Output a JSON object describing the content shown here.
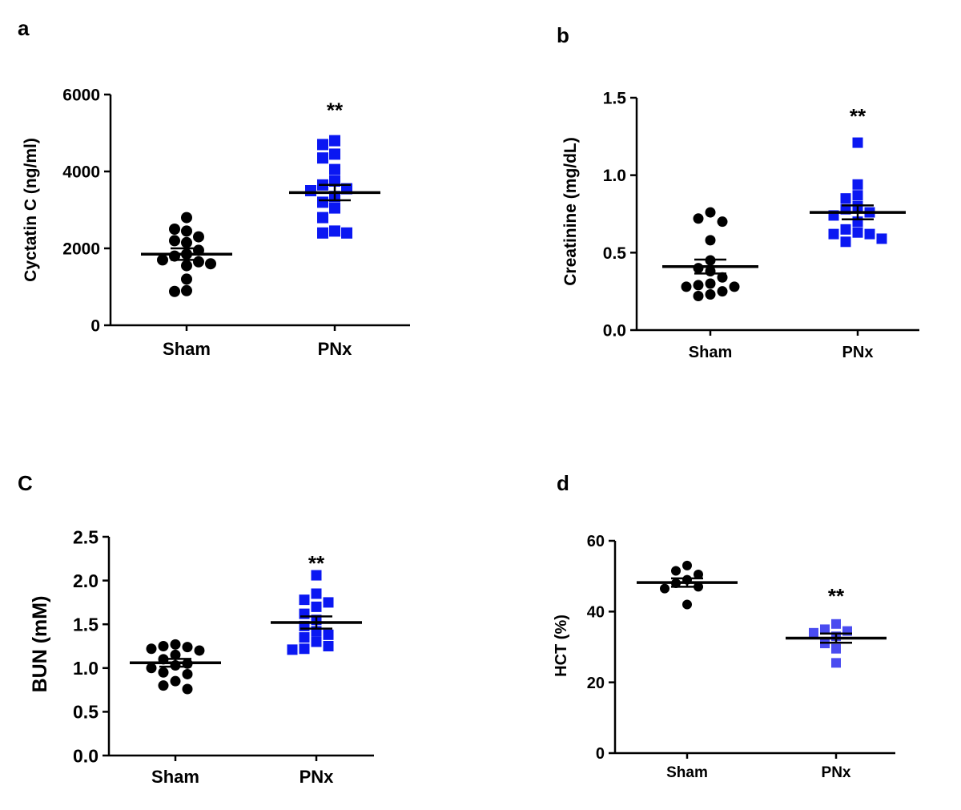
{
  "chart_data": [
    {
      "panel": "a",
      "type": "scatter",
      "categories": [
        "Sham",
        "PNx"
      ],
      "ylabel": "Cyctatin C (ng/ml)",
      "ylim": [
        0,
        6000
      ],
      "yticks": [
        0,
        2000,
        4000,
        6000
      ],
      "ytick_labels": [
        "0",
        "2000",
        "4000",
        "6000"
      ],
      "significance": {
        "category": "PNx",
        "label": "**"
      },
      "series": [
        {
          "name": "Sham",
          "marker": "circle",
          "color": "#000000",
          "values": [
            2800,
            2450,
            2500,
            2300,
            2200,
            2150,
            1950,
            1850,
            1800,
            1700,
            1650,
            1600,
            1550,
            1200,
            900,
            880
          ],
          "mean": 1850,
          "sem": 150
        },
        {
          "name": "PNx",
          "marker": "square",
          "color": "#0a17f2",
          "values": [
            4800,
            4700,
            4450,
            4350,
            4050,
            3750,
            3650,
            3550,
            3500,
            3350,
            3200,
            3050,
            2800,
            2450,
            2400,
            2400
          ],
          "mean": 3450,
          "sem": 200
        }
      ]
    },
    {
      "panel": "b",
      "type": "scatter",
      "categories": [
        "Sham",
        "PNx"
      ],
      "ylabel": "Creatinine (mg/dL)",
      "ylim": [
        0,
        1.5
      ],
      "yticks": [
        0,
        0.5,
        1.0,
        1.5
      ],
      "ytick_labels": [
        "0.0",
        "0.5",
        "1.0",
        "1.5"
      ],
      "significance": {
        "category": "PNx",
        "label": "**"
      },
      "series": [
        {
          "name": "Sham",
          "marker": "circle",
          "color": "#000000",
          "values": [
            0.76,
            0.72,
            0.7,
            0.58,
            0.45,
            0.4,
            0.38,
            0.34,
            0.3,
            0.29,
            0.28,
            0.28,
            0.25,
            0.23,
            0.22
          ],
          "mean": 0.41,
          "sem": 0.045
        },
        {
          "name": "PNx",
          "marker": "square",
          "color": "#0a17f2",
          "values": [
            1.21,
            0.94,
            0.87,
            0.85,
            0.8,
            0.78,
            0.76,
            0.74,
            0.7,
            0.65,
            0.63,
            0.62,
            0.62,
            0.59,
            0.57
          ],
          "mean": 0.76,
          "sem": 0.045
        }
      ]
    },
    {
      "panel": "C",
      "type": "scatter",
      "categories": [
        "Sham",
        "PNx"
      ],
      "ylabel": "BUN (mM)",
      "ylim": [
        0,
        2.5
      ],
      "yticks": [
        0,
        0.5,
        1.0,
        1.5,
        2.0,
        2.5
      ],
      "ytick_labels": [
        "0.0",
        "0.5",
        "1.0",
        "1.5",
        "2.0",
        "2.5"
      ],
      "significance": {
        "category": "PNx",
        "label": "**"
      },
      "series": [
        {
          "name": "Sham",
          "marker": "circle",
          "color": "#000000",
          "values": [
            1.27,
            1.25,
            1.24,
            1.22,
            1.2,
            1.15,
            1.1,
            1.05,
            1.03,
            1.0,
            0.95,
            0.93,
            0.85,
            0.8,
            0.76
          ],
          "mean": 1.06,
          "sem": 0.045
        },
        {
          "name": "PNx",
          "marker": "square",
          "color": "#0a17f2",
          "values": [
            2.06,
            1.85,
            1.78,
            1.75,
            1.7,
            1.62,
            1.55,
            1.48,
            1.42,
            1.38,
            1.35,
            1.3,
            1.25,
            1.22,
            1.21
          ],
          "mean": 1.52,
          "sem": 0.07
        }
      ]
    },
    {
      "panel": "d",
      "type": "scatter",
      "categories": [
        "Sham",
        "PNx"
      ],
      "ylabel": "HCT (%)",
      "ylim": [
        0,
        60
      ],
      "yticks": [
        0,
        20,
        40,
        60
      ],
      "ytick_labels": [
        "0",
        "20",
        "40",
        "60"
      ],
      "significance": {
        "category": "PNx",
        "label": "**"
      },
      "series": [
        {
          "name": "Sham",
          "marker": "circle",
          "color": "#000000",
          "values": [
            53,
            51.5,
            50.5,
            49,
            48,
            47,
            46.5,
            42
          ],
          "mean": 48.2,
          "sem": 1.2
        },
        {
          "name": "PNx",
          "marker": "square",
          "color": "#4a4cf0",
          "values": [
            36.5,
            35,
            34.5,
            34,
            33,
            31,
            29.5,
            25.5
          ],
          "mean": 32.5,
          "sem": 1.3
        }
      ]
    }
  ]
}
